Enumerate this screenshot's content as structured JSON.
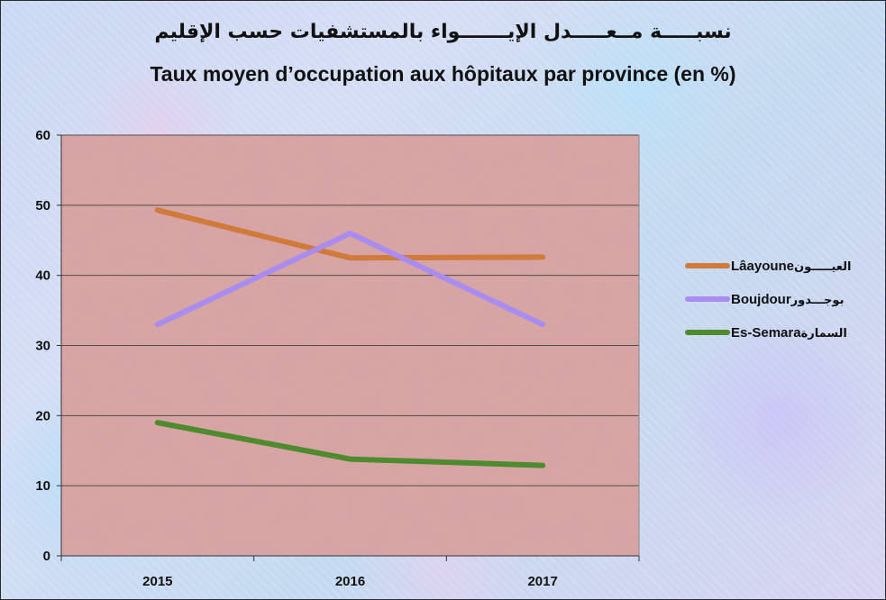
{
  "chart_data": {
    "type": "line",
    "title_ar": "نسبـــــة مــعـــــدل الإيـــــــواء بالمستشفيات حسب الإقليم",
    "title": "Taux moyen d’occupation aux hôpitaux par province (en %)",
    "xlabel": "",
    "ylabel": "",
    "categories": [
      "2015",
      "2016",
      "2017"
    ],
    "ylim": [
      0,
      60
    ],
    "yticks": [
      0,
      10,
      20,
      30,
      40,
      50,
      60
    ],
    "grid": true,
    "legend_position": "right",
    "plot_background": "#d9a5a5",
    "series": [
      {
        "name": "Lâayoune",
        "name_ar": "العيـــــون",
        "color": "#d07a3c",
        "values": [
          49.3,
          42.5,
          42.6
        ]
      },
      {
        "name": "Boujdour",
        "name_ar": "بوجـــدور",
        "color": "#a98cf0",
        "values": [
          33.0,
          46.0,
          33.0
        ]
      },
      {
        "name": "Es-Semara",
        "name_ar": "السمارة",
        "color": "#4e8a2e",
        "values": [
          19.0,
          13.8,
          12.9
        ]
      }
    ]
  }
}
